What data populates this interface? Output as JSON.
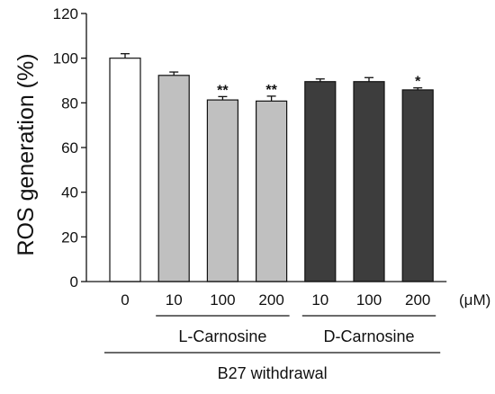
{
  "chart_data": {
    "type": "bar",
    "ylabel": "ROS generation (%)",
    "ylim": [
      0,
      120
    ],
    "yticks": [
      0,
      20,
      40,
      60,
      80,
      100,
      120
    ],
    "unit_label": "(μM)",
    "categories": [
      "0",
      "10",
      "100",
      "200",
      "10",
      "100",
      "200"
    ],
    "values": [
      100,
      92.3,
      81.3,
      80.8,
      89.5,
      89.5,
      85.8
    ],
    "errors": [
      2.0,
      1.5,
      1.5,
      2.2,
      1.2,
      1.8,
      0.9
    ],
    "significance": [
      "",
      "",
      "**",
      "**",
      "",
      "",
      "*"
    ],
    "bar_colors": [
      "#ffffff",
      "#c0c0c0",
      "#c0c0c0",
      "#c0c0c0",
      "#3d3d3d",
      "#3d3d3d",
      "#3d3d3d"
    ],
    "groups": [
      {
        "label": "L-Carnosine",
        "from": 1,
        "to": 3
      },
      {
        "label": "D-Carnosine",
        "from": 4,
        "to": 6
      }
    ],
    "outer_group": {
      "label": "B27 withdrawal",
      "from": 0,
      "to": 6
    }
  }
}
